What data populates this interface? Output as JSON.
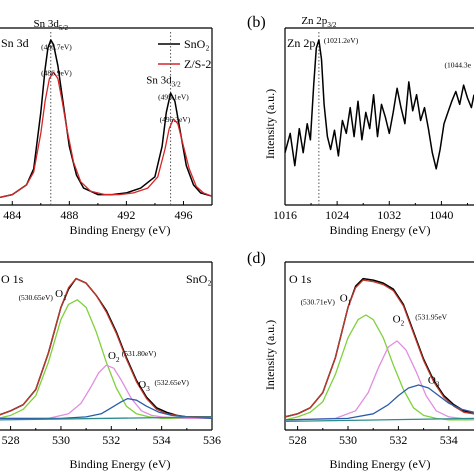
{
  "chart_data": [
    {
      "panel": "a",
      "type": "line",
      "title": "Sn 3d",
      "xlabel": "Binding Energy (eV)",
      "ylabel": "",
      "xlim": [
        483,
        498
      ],
      "x_ticks": [
        484,
        488,
        492,
        496
      ],
      "legend": {
        "placement": "top-right",
        "entries": [
          {
            "label": "SnO₂",
            "color": "#000000"
          },
          {
            "label": "Z/S-2",
            "color": "#d62728"
          }
        ]
      },
      "series": [
        {
          "name": "SnO₂",
          "color": "#000000",
          "x": [
            483,
            484,
            485,
            485.5,
            486,
            486.3,
            486.5,
            486.7,
            486.9,
            487.2,
            487.5,
            488,
            488.5,
            489,
            490,
            491,
            492,
            493,
            494,
            494.5,
            494.8,
            495.1,
            495.4,
            495.8,
            496.2,
            496.7,
            497.2,
            498
          ],
          "y": [
            0.02,
            0.04,
            0.1,
            0.2,
            0.55,
            0.82,
            0.95,
            1.0,
            0.97,
            0.84,
            0.65,
            0.34,
            0.16,
            0.08,
            0.04,
            0.04,
            0.05,
            0.08,
            0.15,
            0.34,
            0.55,
            0.67,
            0.62,
            0.42,
            0.22,
            0.1,
            0.05,
            0.03
          ]
        },
        {
          "name": "Z/S-2",
          "color": "#d62728",
          "x": [
            483,
            484,
            485,
            485.5,
            486,
            486.3,
            486.6,
            486.9,
            487.2,
            487.5,
            487.8,
            488.3,
            488.8,
            489.5,
            490.5,
            491.5,
            492.5,
            493.5,
            494.2,
            494.7,
            495,
            495.3,
            495.6,
            496,
            496.4,
            496.9,
            497.4,
            498
          ],
          "y": [
            0.02,
            0.04,
            0.1,
            0.18,
            0.42,
            0.62,
            0.76,
            0.8,
            0.76,
            0.62,
            0.46,
            0.24,
            0.12,
            0.06,
            0.04,
            0.04,
            0.05,
            0.08,
            0.15,
            0.32,
            0.45,
            0.51,
            0.48,
            0.34,
            0.2,
            0.09,
            0.05,
            0.03
          ]
        }
      ],
      "reference_lines": [
        486.7,
        495.1
      ],
      "annotations": [
        {
          "text": "Sn 3d",
          "sub": "5/2",
          "x": 486.7,
          "level": 1.08,
          "size": "label"
        },
        {
          "text": "(486.7eV)",
          "x": 487.1,
          "level": 0.94,
          "size": "small"
        },
        {
          "text": "(486.9eV)",
          "x": 487.1,
          "level": 0.78,
          "size": "small"
        },
        {
          "text": "Sn 3d",
          "sub": "3/2",
          "x": 494.6,
          "level": 0.73,
          "size": "label"
        },
        {
          "text": "(495.1eV)",
          "x": 495.3,
          "level": 0.63,
          "size": "small"
        },
        {
          "text": "(495.3eV)",
          "x": 495.4,
          "level": 0.49,
          "size": "small"
        }
      ]
    },
    {
      "panel": "b",
      "type": "line",
      "title": "Zn 2p",
      "xlabel": "Binding Energy (eV)",
      "ylabel": "Intensity (a.u.)",
      "xlim": [
        1016,
        1045
      ],
      "x_ticks": [
        1016,
        1024,
        1032,
        1040
      ],
      "series": [
        {
          "name": "",
          "color": "#000000",
          "x": [
            1016,
            1016.8,
            1017.5,
            1018.2,
            1018.8,
            1019.4,
            1019.9,
            1020.4,
            1020.8,
            1021.2,
            1021.6,
            1022.0,
            1022.5,
            1023.0,
            1023.6,
            1024.2,
            1024.8,
            1025.4,
            1026.0,
            1026.6,
            1027.2,
            1027.8,
            1028.4,
            1029.0,
            1029.6,
            1030.2,
            1030.8,
            1031.4,
            1032.0,
            1032.6,
            1033.2,
            1033.8,
            1034.4,
            1035.0,
            1035.6,
            1036.2,
            1036.8,
            1037.4,
            1038.0,
            1038.6,
            1039.2,
            1039.8,
            1040.4,
            1041.0,
            1041.6,
            1042.2,
            1042.8,
            1043.4,
            1044.0,
            1044.6,
            1045
          ],
          "y": [
            0.3,
            0.42,
            0.22,
            0.45,
            0.3,
            0.48,
            0.38,
            0.72,
            0.95,
            1.0,
            0.88,
            0.6,
            0.4,
            0.32,
            0.44,
            0.28,
            0.5,
            0.42,
            0.58,
            0.4,
            0.62,
            0.38,
            0.55,
            0.45,
            0.66,
            0.4,
            0.6,
            0.52,
            0.42,
            0.55,
            0.7,
            0.58,
            0.48,
            0.74,
            0.56,
            0.66,
            0.5,
            0.58,
            0.45,
            0.3,
            0.2,
            0.32,
            0.48,
            0.55,
            0.62,
            0.68,
            0.6,
            0.72,
            0.64,
            0.58,
            0.66
          ]
        }
      ],
      "reference_lines": [
        1021.2
      ],
      "annotations": [
        {
          "text": "Zn 2p",
          "sub": "3/2",
          "x": 1021.2,
          "level": 1.1,
          "size": "label"
        },
        {
          "text": "(1021.2eV)",
          "x": 1024.6,
          "level": 0.98,
          "size": "small"
        },
        {
          "text": "(1044.3e",
          "x": 1042.5,
          "level": 0.83,
          "size": "small"
        }
      ]
    },
    {
      "panel": "c",
      "type": "line",
      "title": "O 1s",
      "sample_label": "SnO₂",
      "xlabel": "Binding Energy (eV)",
      "ylabel": "",
      "xlim": [
        527.5,
        536
      ],
      "x_ticks": [
        528,
        530,
        532,
        534,
        536
      ],
      "series": [
        {
          "name": "",
          "color": "#000000",
          "x": [
            527.5,
            528,
            528.5,
            529,
            529.5,
            530,
            530.3,
            530.6,
            531,
            531.4,
            531.8,
            532.2,
            532.6,
            533,
            533.4,
            533.8,
            534.2,
            534.6,
            535,
            535.5,
            536
          ],
          "y": [
            0.07,
            0.1,
            0.14,
            0.24,
            0.48,
            0.78,
            0.9,
            0.97,
            0.94,
            0.86,
            0.76,
            0.62,
            0.45,
            0.3,
            0.19,
            0.12,
            0.09,
            0.07,
            0.06,
            0.06,
            0.06
          ]
        },
        {
          "name": "",
          "color": "#c0392b",
          "x": [
            527.5,
            528,
            528.5,
            529,
            529.5,
            530,
            530.3,
            530.6,
            531,
            531.4,
            531.8,
            532.2,
            532.6,
            533,
            533.4,
            533.8,
            534.2,
            534.6,
            535,
            535.5,
            536
          ],
          "y": [
            0.07,
            0.1,
            0.14,
            0.24,
            0.48,
            0.78,
            0.91,
            0.97,
            0.94,
            0.86,
            0.75,
            0.61,
            0.44,
            0.29,
            0.18,
            0.11,
            0.08,
            0.07,
            0.06,
            0.06,
            0.06
          ]
        },
        {
          "name": "",
          "color": "#7fd13b",
          "x": [
            527.5,
            528,
            528.5,
            529,
            529.5,
            530,
            530.3,
            530.65,
            531,
            531.4,
            531.8,
            532.2,
            532.6,
            533,
            533.5,
            534,
            535,
            536
          ],
          "y": [
            0.05,
            0.07,
            0.11,
            0.2,
            0.42,
            0.7,
            0.8,
            0.83,
            0.78,
            0.62,
            0.42,
            0.25,
            0.13,
            0.08,
            0.06,
            0.05,
            0.05,
            0.05
          ]
        },
        {
          "name": "",
          "color": "#e08ee0",
          "x": [
            527.5,
            529.5,
            530.3,
            530.8,
            531.2,
            531.5,
            531.8,
            532.1,
            532.4,
            532.8,
            533.2,
            533.6,
            534,
            535,
            536
          ],
          "y": [
            0.05,
            0.05,
            0.08,
            0.15,
            0.26,
            0.35,
            0.4,
            0.38,
            0.3,
            0.18,
            0.1,
            0.07,
            0.06,
            0.05,
            0.05
          ]
        },
        {
          "name": "",
          "color": "#2a5caa",
          "x": [
            527.5,
            530,
            531,
            531.6,
            532,
            532.4,
            532.65,
            533,
            533.4,
            533.9,
            534.4,
            535,
            536
          ],
          "y": [
            0.05,
            0.05,
            0.06,
            0.08,
            0.12,
            0.16,
            0.18,
            0.17,
            0.13,
            0.09,
            0.07,
            0.06,
            0.05
          ]
        },
        {
          "name": "",
          "color": "#2c8c8c",
          "x": [
            527.5,
            536
          ],
          "y": [
            0.04,
            0.06
          ]
        }
      ],
      "annotations": [
        {
          "text": "(530.65eV)",
          "x": 529.0,
          "level": 0.83,
          "size": "small"
        },
        {
          "text": "O",
          "sub": "1",
          "x": 530.0,
          "level": 0.85,
          "size": "label"
        },
        {
          "text": "O",
          "sub": "2",
          "x": 532.1,
          "level": 0.44,
          "size": "label"
        },
        {
          "text": "(531.80eV)",
          "x": 533.1,
          "level": 0.46,
          "size": "small"
        },
        {
          "text": "O",
          "sub": "3",
          "x": 533.3,
          "level": 0.25,
          "size": "label"
        },
        {
          "text": "(532.65eV)",
          "x": 534.4,
          "level": 0.27,
          "size": "small"
        }
      ]
    },
    {
      "panel": "d",
      "type": "line",
      "title": "O 1s",
      "xlabel": "Binding Energy (eV)",
      "ylabel": "Intensity (a.u.)",
      "xlim": [
        527.5,
        535
      ],
      "x_ticks": [
        528,
        530,
        532,
        534
      ],
      "series": [
        {
          "name": "",
          "color": "#000000",
          "x": [
            527.5,
            528,
            528.5,
            529,
            529.5,
            530,
            530.3,
            530.6,
            531,
            531.4,
            531.8,
            532.2,
            532.6,
            533,
            533.4,
            533.8,
            534.2,
            534.6,
            535
          ],
          "y": [
            0.06,
            0.08,
            0.12,
            0.22,
            0.45,
            0.78,
            0.92,
            0.97,
            0.96,
            0.94,
            0.9,
            0.8,
            0.62,
            0.44,
            0.3,
            0.2,
            0.14,
            0.1,
            0.08
          ]
        },
        {
          "name": "",
          "color": "#c0392b",
          "x": [
            527.5,
            528,
            528.5,
            529,
            529.5,
            530,
            530.3,
            530.6,
            531,
            531.4,
            531.8,
            532.2,
            532.6,
            533,
            533.4,
            533.8,
            534.2,
            534.6,
            535
          ],
          "y": [
            0.06,
            0.08,
            0.12,
            0.22,
            0.45,
            0.78,
            0.91,
            0.96,
            0.95,
            0.93,
            0.89,
            0.79,
            0.61,
            0.43,
            0.29,
            0.19,
            0.13,
            0.09,
            0.08
          ]
        },
        {
          "name": "",
          "color": "#7fd13b",
          "x": [
            527.5,
            528,
            528.5,
            529,
            529.5,
            530,
            530.4,
            530.71,
            531,
            531.4,
            531.8,
            532.2,
            532.6,
            533,
            533.5,
            534,
            535
          ],
          "y": [
            0.04,
            0.06,
            0.09,
            0.16,
            0.34,
            0.58,
            0.7,
            0.73,
            0.7,
            0.58,
            0.4,
            0.24,
            0.12,
            0.07,
            0.05,
            0.04,
            0.04
          ]
        },
        {
          "name": "",
          "color": "#e08ee0",
          "x": [
            527.5,
            529.5,
            530.3,
            530.8,
            531.2,
            531.6,
            531.95,
            532.3,
            532.7,
            533.1,
            533.5,
            534,
            535
          ],
          "y": [
            0.04,
            0.05,
            0.1,
            0.22,
            0.38,
            0.52,
            0.56,
            0.5,
            0.36,
            0.2,
            0.1,
            0.06,
            0.04
          ]
        },
        {
          "name": "",
          "color": "#2a5caa",
          "x": [
            527.5,
            530,
            531,
            531.6,
            532,
            532.4,
            532.8,
            533.2,
            533.6,
            534,
            534.5,
            535
          ],
          "y": [
            0.04,
            0.05,
            0.08,
            0.14,
            0.2,
            0.25,
            0.27,
            0.25,
            0.2,
            0.15,
            0.11,
            0.09
          ]
        },
        {
          "name": "",
          "color": "#2c8c8c",
          "x": [
            527.5,
            535
          ],
          "y": [
            0.03,
            0.05
          ]
        }
      ],
      "annotations": [
        {
          "text": "(530.71eV)",
          "x": 528.8,
          "level": 0.8,
          "size": "small"
        },
        {
          "text": "O",
          "sub": "1",
          "x": 529.9,
          "level": 0.82,
          "size": "label"
        },
        {
          "text": "O",
          "sub": "2",
          "x": 532.0,
          "level": 0.68,
          "size": "label"
        },
        {
          "text": "(531.95eV",
          "x": 533.3,
          "level": 0.7,
          "size": "small"
        },
        {
          "text": "O",
          "sub": "3",
          "x": 533.4,
          "level": 0.28,
          "size": "label"
        }
      ]
    }
  ],
  "panel_letters": [
    "(b)",
    "(d)"
  ]
}
